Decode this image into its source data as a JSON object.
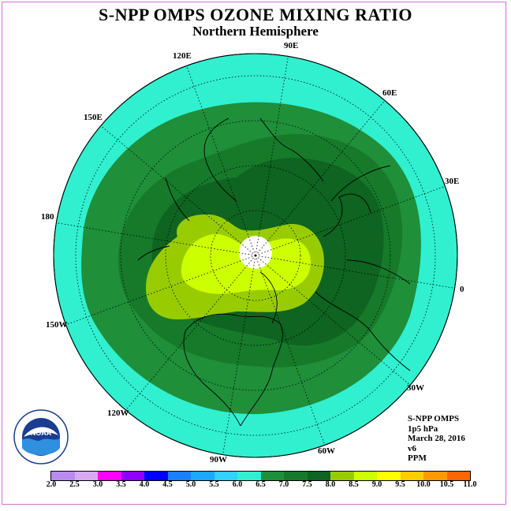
{
  "title": "S-NPP OMPS OZONE MIXING RATIO",
  "subtitle": "Northern Hemisphere",
  "longitude_labels": [
    "0",
    "30E",
    "60E",
    "90E",
    "120E",
    "150E",
    "180",
    "150W",
    "120W",
    "90W",
    "60W",
    "30W"
  ],
  "info": {
    "instrument": "S-NPP OMPS",
    "level": "1p5 hPa",
    "date": "March 28, 2016",
    "version": "v6",
    "units": "PPM"
  },
  "colorbar": {
    "ticks": [
      "2.0",
      "2.5",
      "3.0",
      "3.5",
      "4.0",
      "4.5",
      "5.0",
      "5.5",
      "6.0",
      "6.5",
      "7.0",
      "7.5",
      "8.0",
      "8.5",
      "9.0",
      "9.5",
      "10.0",
      "10.5",
      "11.0"
    ],
    "colors": [
      "#b98af0",
      "#d8a8f0",
      "#ff00ff",
      "#9000ff",
      "#0000ff",
      "#1a7fff",
      "#1aa8ff",
      "#30d0ff",
      "#30f0d0",
      "#1f8f3a",
      "#167a2a",
      "#0e6420",
      "#99cc00",
      "#ccff00",
      "#ffff00",
      "#ffcc00",
      "#ff9900",
      "#ff6600",
      "#e00000",
      "#8b4513"
    ]
  },
  "colors": {
    "outer_ring": "#30f0d0",
    "mid_green": "#1f8f3a",
    "dark_green": "#167a2a",
    "darker_green": "#0e6420",
    "lime": "#99cc00",
    "bright_lime": "#ccff00"
  },
  "logo_text": "NOAA"
}
